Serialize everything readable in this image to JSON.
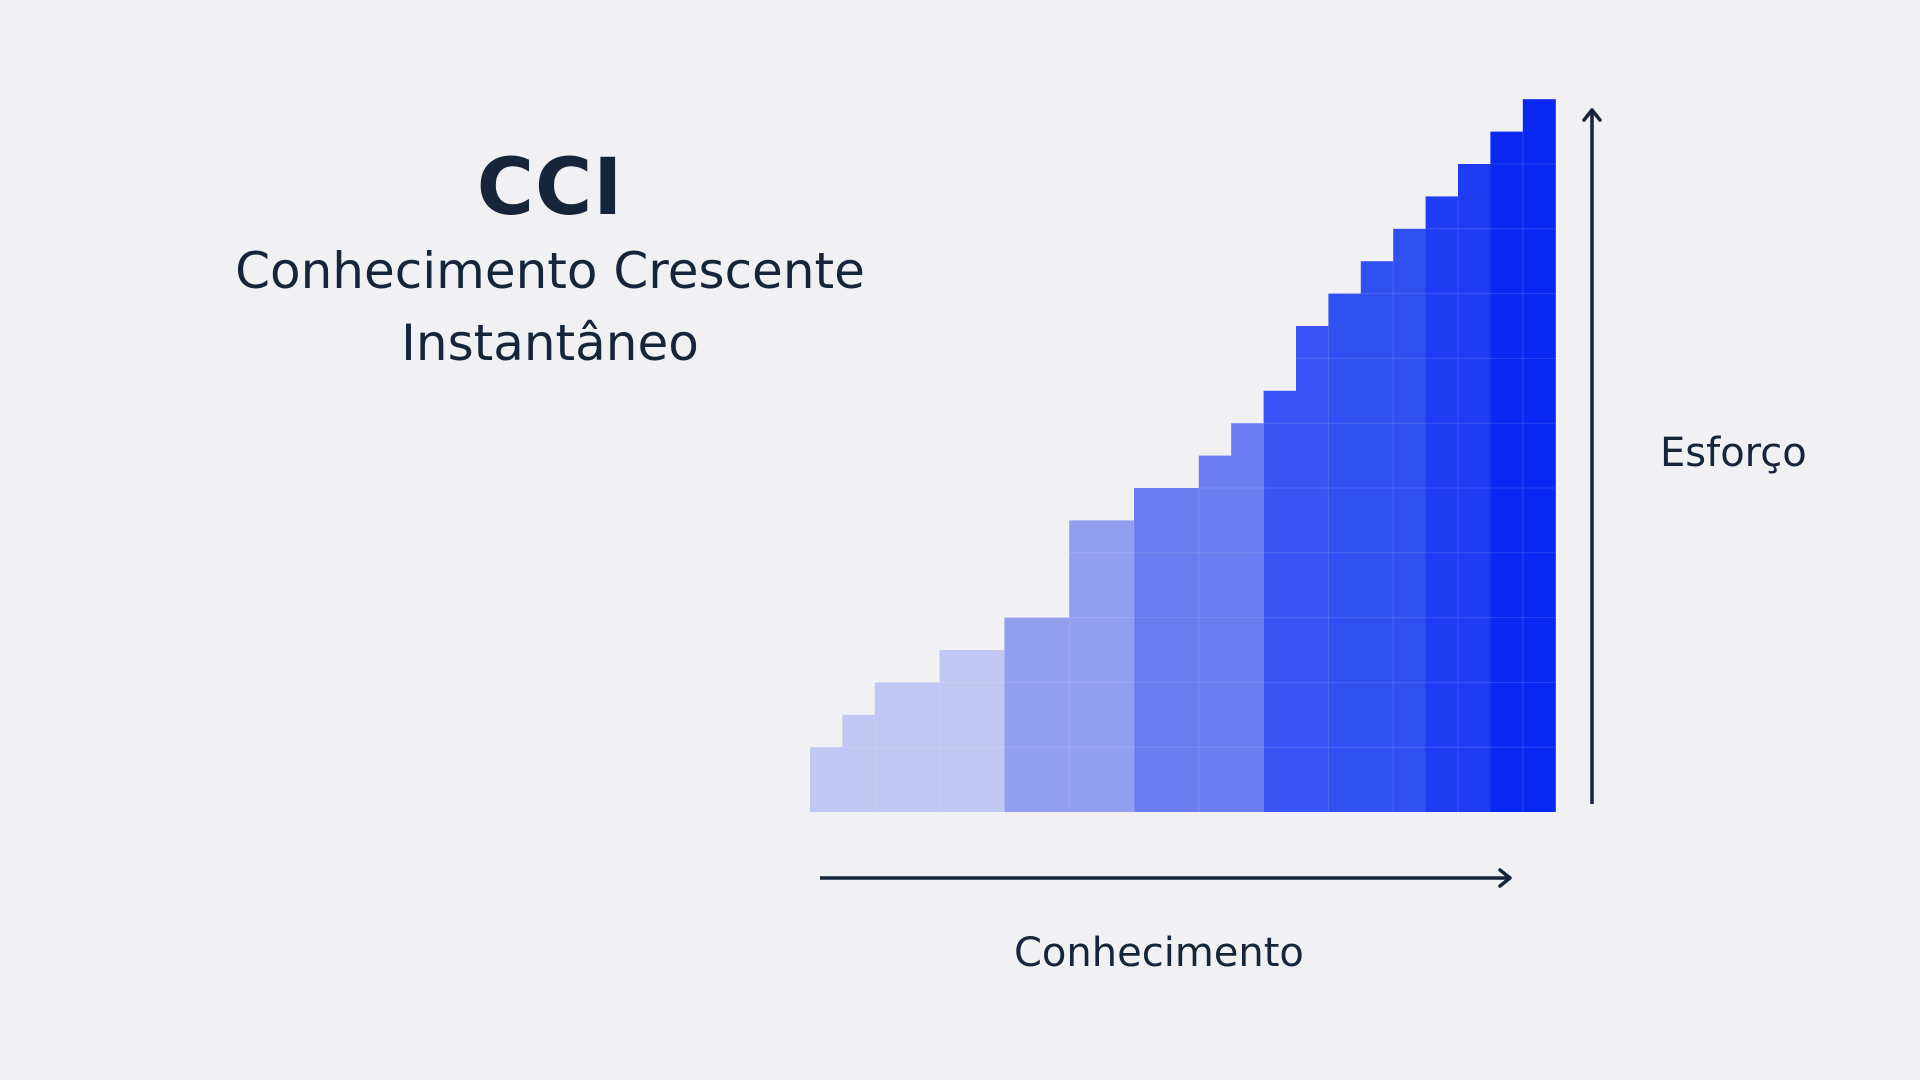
{
  "title": "CCI",
  "subtitle_line1": "Conhecimento Crescente",
  "subtitle_line2": "Instantâneo",
  "x_axis_label": "Conhecimento",
  "y_axis_label": "Esforço",
  "chart_data": {
    "type": "bar",
    "xlabel": "Conhecimento",
    "ylabel": "Esforço",
    "values": [
      2,
      3,
      4,
      4,
      5,
      5,
      6,
      6,
      9,
      9,
      10,
      10,
      11,
      12,
      13,
      15,
      16,
      17,
      18,
      19,
      20,
      21,
      22
    ],
    "ylim": [
      0,
      22
    ],
    "grid": true,
    "colors": [
      "#c1c7f3",
      "#929fef",
      "#6a7cf0",
      "#3a53f4",
      "#3150f2",
      "#1f3cf2",
      "#0a28f2"
    ],
    "color_groups": [
      0,
      0,
      0,
      0,
      0,
      0,
      1,
      1,
      1,
      1,
      2,
      2,
      2,
      2,
      3,
      3,
      4,
      4,
      4,
      5,
      5,
      6,
      6
    ]
  }
}
